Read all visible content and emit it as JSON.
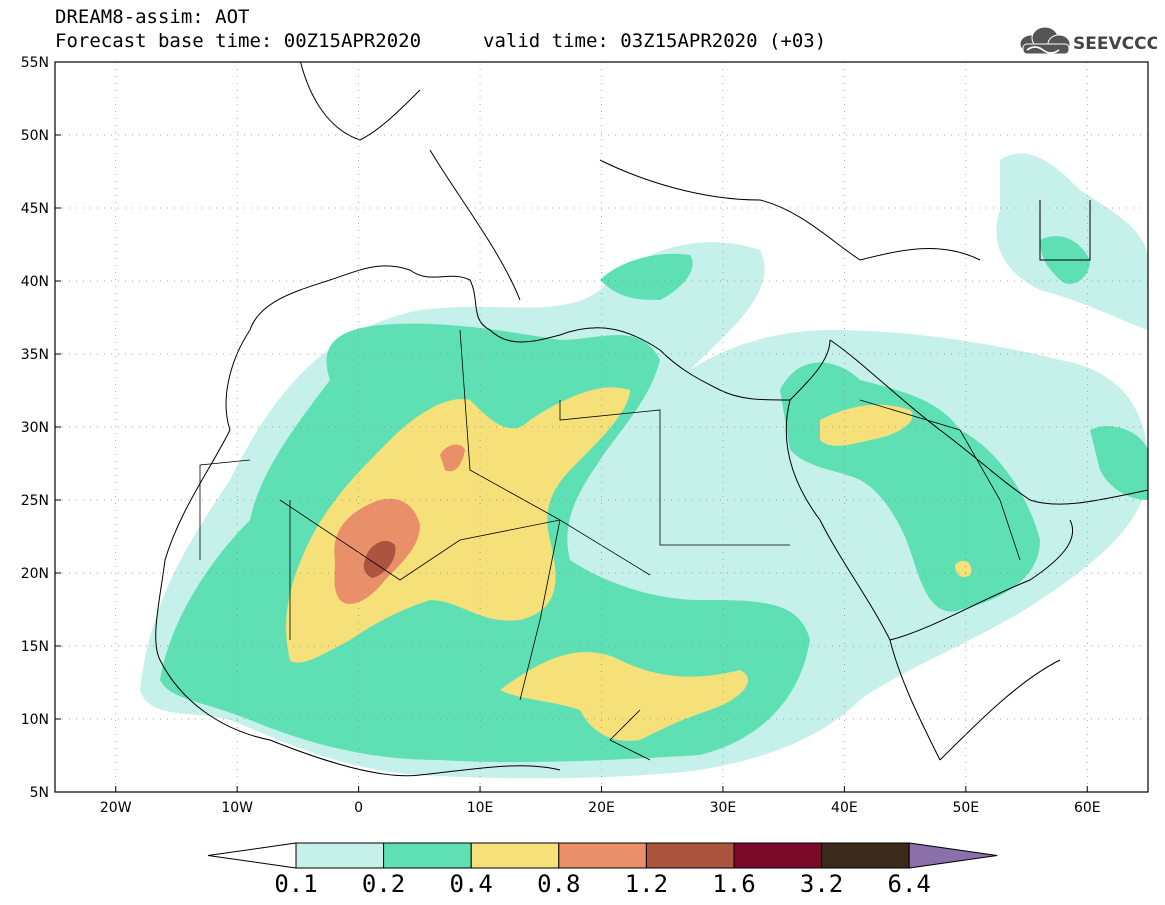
{
  "header": {
    "product": "DREAM8-assim: AOT",
    "base_time": "Forecast base time: 00Z15APR2020",
    "valid_time": "valid time: 03Z15APR2020 (+03)",
    "logo_text": "SEEVCCC"
  },
  "map": {
    "projection": "cylindrical equidistant",
    "lon_range": [
      -25,
      65
    ],
    "lat_range": [
      5,
      55
    ],
    "lat_labels": [
      "55N",
      "50N",
      "45N",
      "40N",
      "35N",
      "30N",
      "25N",
      "20N",
      "15N",
      "10N",
      "5N"
    ],
    "lon_labels": [
      "20W",
      "10W",
      "0",
      "10E",
      "20E",
      "30E",
      "40E",
      "50E",
      "60E"
    ],
    "gridlines": "dotted"
  },
  "colorbar": {
    "levels": [
      "0.1",
      "0.2",
      "0.4",
      "0.8",
      "1.2",
      "1.6",
      "3.2",
      "6.4"
    ],
    "colors": [
      "#ffffff",
      "#c6f1ea",
      "#5fe0b4",
      "#f5e07a",
      "#e98f6a",
      "#ad5440",
      "#7b0a2a",
      "#3a2a1c",
      "#8a6fa8"
    ]
  }
}
